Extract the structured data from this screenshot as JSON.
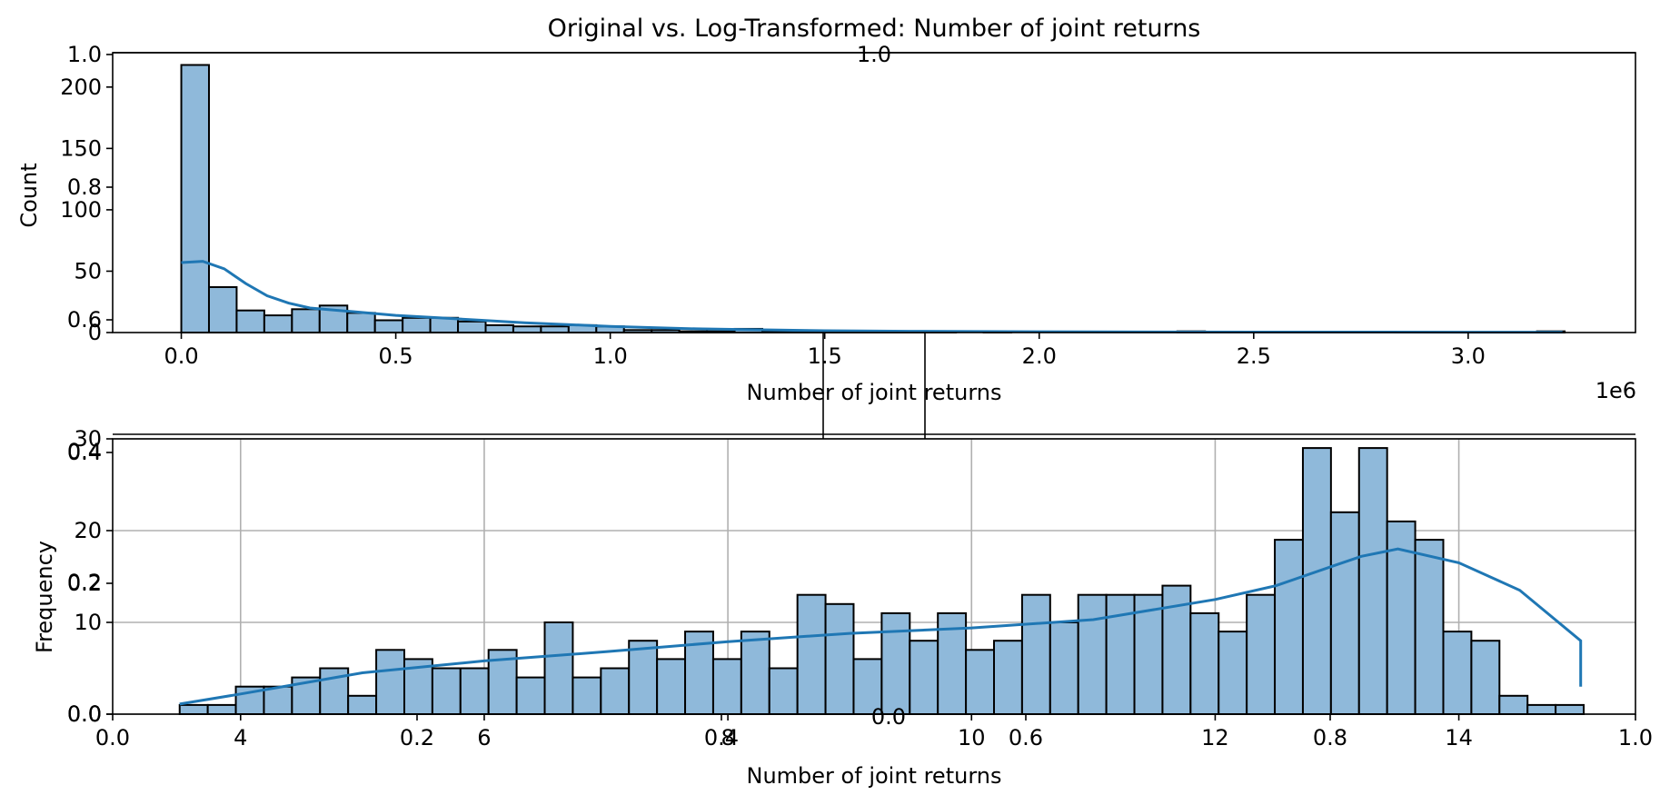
{
  "title": "Original vs. Log-Transformed: Number of joint returns",
  "chart_data": [
    {
      "type": "bar",
      "name": "top_histogram",
      "xlabel": "Number of joint returns",
      "ylabel": "Count",
      "x_offset_text": "1e6",
      "xlim": [
        -0.16,
        3.39
      ],
      "ylim": [
        0,
        228
      ],
      "xticks": [
        0.0,
        0.5,
        1.0,
        1.5,
        2.0,
        2.5,
        3.0
      ],
      "xtick_labels": [
        "0.0",
        "0.5",
        "1.0",
        "1.5",
        "2.0",
        "2.5",
        "3.0"
      ],
      "yticks": [
        0,
        50,
        100,
        150,
        200
      ],
      "ytick_labels": [
        "0",
        "50",
        "100",
        "150",
        "200"
      ],
      "bin_start": 0.0,
      "bin_width": 0.0645,
      "values": [
        218,
        37,
        18,
        14,
        19,
        22,
        16,
        10,
        12,
        12,
        9,
        6,
        5,
        5,
        6,
        5,
        2,
        2,
        1,
        1,
        3,
        1,
        1,
        1,
        1,
        1,
        1,
        1,
        0,
        1,
        0,
        0,
        0,
        0,
        0,
        0,
        1,
        0,
        0,
        0,
        0,
        0,
        0,
        0,
        0,
        0,
        0,
        0,
        0,
        1
      ],
      "kde": {
        "x": [
          0.0,
          0.05,
          0.1,
          0.15,
          0.2,
          0.25,
          0.3,
          0.4,
          0.5,
          0.6,
          0.7,
          0.8,
          0.9,
          1.0,
          1.1,
          1.2,
          1.3,
          1.5,
          1.7,
          2.0,
          2.5,
          3.0,
          3.22
        ],
        "y": [
          57,
          58,
          52,
          40,
          30,
          24,
          20,
          17,
          14,
          12,
          10,
          8,
          6.5,
          5,
          4,
          3,
          2.5,
          1.5,
          1,
          0.7,
          0.4,
          0.3,
          0.3
        ]
      }
    },
    {
      "type": "bar",
      "name": "bottom_histogram",
      "xlabel": "Number of joint returns",
      "ylabel": "Frequency",
      "xlim": [
        2.95,
        15.45
      ],
      "ylim": [
        0,
        30
      ],
      "xticks": [
        4,
        6,
        8,
        10,
        12,
        14
      ],
      "xtick_labels": [
        "4",
        "6",
        "8",
        "10",
        "12",
        "14"
      ],
      "yticks": [
        0,
        10,
        20,
        30
      ],
      "ytick_labels": [
        "0",
        "10",
        "20",
        "30"
      ],
      "grid": true,
      "bin_start": 3.5,
      "bin_width": 0.2305,
      "values": [
        1,
        1,
        3,
        3,
        4,
        5,
        2,
        7,
        6,
        5,
        5,
        7,
        4,
        10,
        4,
        5,
        8,
        6,
        9,
        6,
        9,
        5,
        13,
        12,
        6,
        11,
        8,
        11,
        7,
        8,
        13,
        10,
        13,
        13,
        13,
        14,
        11,
        9,
        13,
        19,
        29,
        22,
        29,
        21,
        19,
        9,
        8,
        2,
        1,
        1
      ],
      "kde": {
        "x": [
          3.5,
          4.0,
          5.0,
          6.0,
          7.0,
          8.0,
          9.0,
          10.0,
          11.0,
          12.0,
          12.5,
          13.0,
          13.2,
          13.5,
          14.0,
          14.5,
          15.0,
          15.0
        ],
        "y": [
          1.1,
          2.2,
          4.5,
          5.8,
          6.8,
          7.9,
          8.8,
          9.4,
          10.3,
          12.5,
          14.0,
          16.3,
          17.2,
          18.0,
          16.5,
          13.5,
          8.0,
          3.0
        ]
      }
    }
  ],
  "overlay_axes": {
    "left_ticks": [
      "0.0",
      "0.2",
      "0.4",
      "0.6",
      "0.8",
      "1.0"
    ],
    "bottom_ticks": [
      "0.0",
      "0.2",
      "0.4",
      "0.6",
      "0.8",
      "1.0"
    ],
    "mid_left_ticks": [
      "0.0",
      "0.2",
      "0.4"
    ],
    "mid_bottom_ticks": [
      "0.0",
      "0.2",
      "0.4",
      "0.6",
      "0.8",
      "1.0"
    ],
    "top_label": "1.0",
    "mid_top_label": "0.0"
  },
  "colors": {
    "bar_fill": "#8fb9da",
    "bar_edge": "#000000",
    "kde_line": "#1f77b4",
    "grid": "#b0b0b0"
  }
}
